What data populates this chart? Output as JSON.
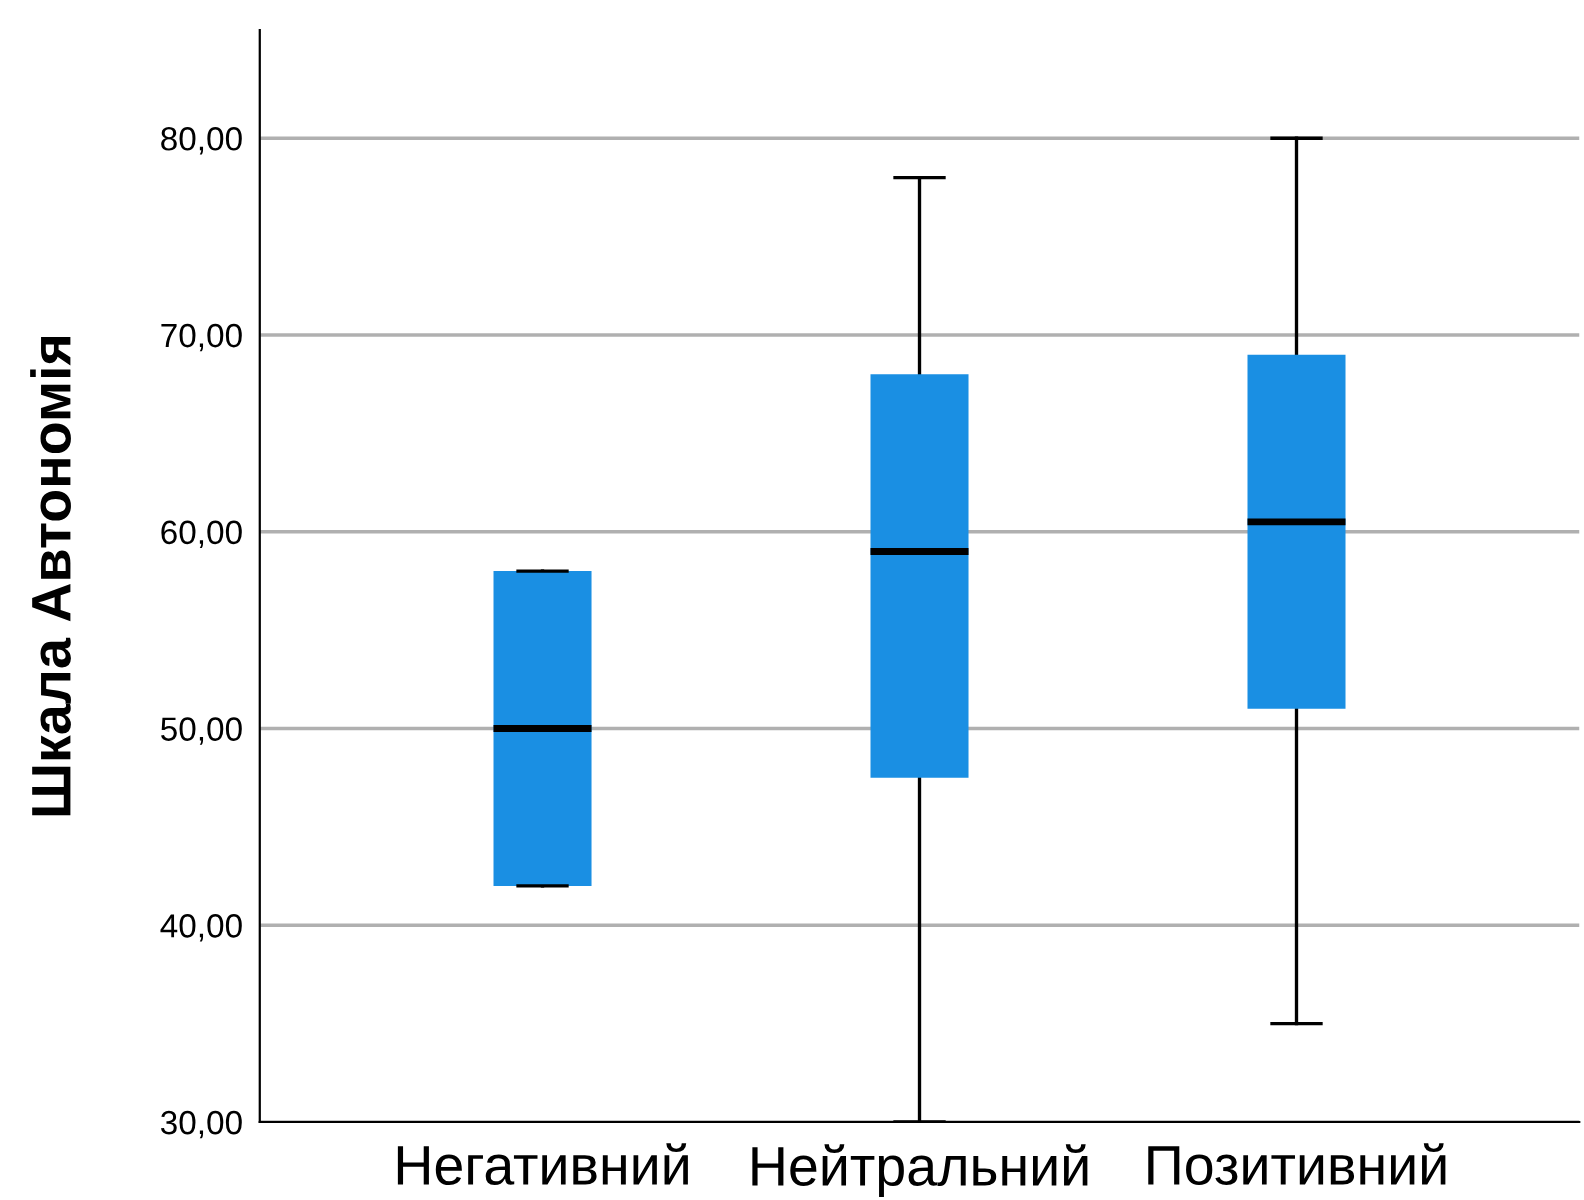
{
  "chart_data": {
    "type": "box",
    "ylabel": "Шкала Автономія",
    "categories": [
      "Негативний",
      "Нейтральний",
      "Позитивний"
    ],
    "boxes": [
      {
        "low": 42,
        "q1": 42,
        "median": 50,
        "q3": 58,
        "high": 58
      },
      {
        "low": 30,
        "q1": 47.5,
        "median": 59,
        "q3": 68,
        "high": 78
      },
      {
        "low": 35,
        "q1": 51,
        "median": 60.5,
        "q3": 69,
        "high": 80
      }
    ],
    "color": "#1a8fe3",
    "ylim": [
      30,
      85.5
    ],
    "yticks": [
      {
        "value": 30,
        "label": "30,00"
      },
      {
        "value": 40,
        "label": "40,00"
      },
      {
        "value": 50,
        "label": "50,00"
      },
      {
        "value": 60,
        "label": "60,00"
      },
      {
        "value": 70,
        "label": "70,00"
      },
      {
        "value": 80,
        "label": "80,00"
      }
    ],
    "grid": "y"
  }
}
